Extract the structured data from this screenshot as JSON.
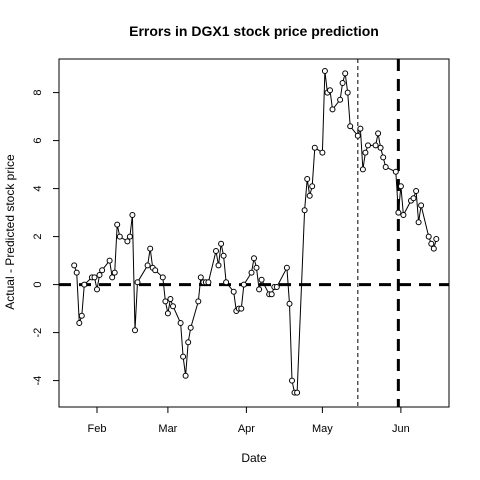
{
  "chart_data": {
    "type": "line",
    "title": "Errors in DGX1 stock price prediction",
    "xlabel": "Date",
    "ylabel": "Actual - Predicted stock price",
    "xlim": [
      "2017-01-17",
      "2017-06-20"
    ],
    "ylim": [
      -5.1,
      9.4
    ],
    "x_ticks": [
      {
        "date": "2017-02-01",
        "label": "Feb"
      },
      {
        "date": "2017-03-01",
        "label": "Mar"
      },
      {
        "date": "2017-04-01",
        "label": "Apr"
      },
      {
        "date": "2017-05-01",
        "label": "May"
      },
      {
        "date": "2017-06-01",
        "label": "Jun"
      }
    ],
    "y_ticks": [
      -4,
      -2,
      0,
      2,
      4,
      6,
      8
    ],
    "grid": false,
    "reference_lines": [
      {
        "axis": "y",
        "value": 0,
        "style": "thick-dashed"
      },
      {
        "axis": "x",
        "value": "2017-05-15",
        "style": "thin-dashed"
      },
      {
        "axis": "x",
        "value": "2017-05-31",
        "style": "thick-dashed"
      }
    ],
    "series": [
      {
        "x": [
          "2017-01-23",
          "2017-01-24",
          "2017-01-25",
          "2017-01-26",
          "2017-01-27",
          "2017-01-30",
          "2017-01-31",
          "2017-02-01",
          "2017-02-02",
          "2017-02-03",
          "2017-02-06",
          "2017-02-07",
          "2017-02-08",
          "2017-02-09",
          "2017-02-10",
          "2017-02-13",
          "2017-02-14",
          "2017-02-15",
          "2017-02-16",
          "2017-02-17",
          "2017-02-21",
          "2017-02-22",
          "2017-02-23",
          "2017-02-24",
          "2017-02-27",
          "2017-02-28",
          "2017-03-01",
          "2017-03-02",
          "2017-03-03",
          "2017-03-06",
          "2017-03-07",
          "2017-03-08",
          "2017-03-09",
          "2017-03-10",
          "2017-03-13",
          "2017-03-14",
          "2017-03-15",
          "2017-03-16",
          "2017-03-17",
          "2017-03-20",
          "2017-03-21",
          "2017-03-22",
          "2017-03-23",
          "2017-03-24",
          "2017-03-27",
          "2017-03-28",
          "2017-03-29",
          "2017-03-30",
          "2017-03-31",
          "2017-04-03",
          "2017-04-04",
          "2017-04-05",
          "2017-04-06",
          "2017-04-07",
          "2017-04-10",
          "2017-04-11",
          "2017-04-12",
          "2017-04-13",
          "2017-04-17",
          "2017-04-18",
          "2017-04-19",
          "2017-04-20",
          "2017-04-21",
          "2017-04-24",
          "2017-04-25",
          "2017-04-26",
          "2017-04-27",
          "2017-04-28",
          "2017-05-01",
          "2017-05-02",
          "2017-05-03",
          "2017-05-04",
          "2017-05-05",
          "2017-05-08",
          "2017-05-09",
          "2017-05-10",
          "2017-05-11",
          "2017-05-12",
          "2017-05-15",
          "2017-05-16",
          "2017-05-17",
          "2017-05-18",
          "2017-05-19",
          "2017-05-22",
          "2017-05-23",
          "2017-05-24",
          "2017-05-25",
          "2017-05-26",
          "2017-05-30",
          "2017-05-31",
          "2017-06-01",
          "2017-06-02",
          "2017-06-05",
          "2017-06-06",
          "2017-06-07",
          "2017-06-08",
          "2017-06-09",
          "2017-06-12",
          "2017-06-13",
          "2017-06-14",
          "2017-06-15"
        ],
        "y": [
          0.8,
          0.5,
          -1.6,
          -1.3,
          0.0,
          0.3,
          0.3,
          -0.2,
          0.4,
          0.6,
          1.0,
          0.3,
          0.5,
          2.5,
          2.0,
          1.8,
          2.0,
          2.9,
          -1.9,
          0.1,
          0.8,
          1.5,
          0.7,
          0.6,
          0.3,
          -0.7,
          -1.2,
          -0.6,
          -0.9,
          -1.6,
          -3.0,
          -3.8,
          -2.4,
          -1.8,
          -0.7,
          0.3,
          0.1,
          0.1,
          0.1,
          1.4,
          0.8,
          1.7,
          1.2,
          0.1,
          -0.3,
          -1.1,
          -1.0,
          -1.0,
          0.0,
          0.5,
          1.1,
          0.7,
          -0.2,
          0.2,
          -0.4,
          -0.4,
          -0.1,
          -0.1,
          0.7,
          -0.8,
          -4.0,
          -4.5,
          -4.5,
          3.1,
          4.4,
          3.7,
          4.1,
          5.7,
          5.5,
          8.9,
          8.0,
          8.1,
          7.3,
          7.7,
          8.4,
          8.8,
          8.0,
          6.6,
          6.2,
          6.5,
          4.8,
          5.5,
          5.8,
          5.8,
          6.3,
          5.7,
          5.3,
          4.9,
          4.7,
          3.0,
          4.1,
          2.9,
          3.5,
          3.6,
          3.9,
          2.6,
          3.3,
          2.0,
          1.7,
          1.5,
          1.9
        ]
      }
    ]
  }
}
